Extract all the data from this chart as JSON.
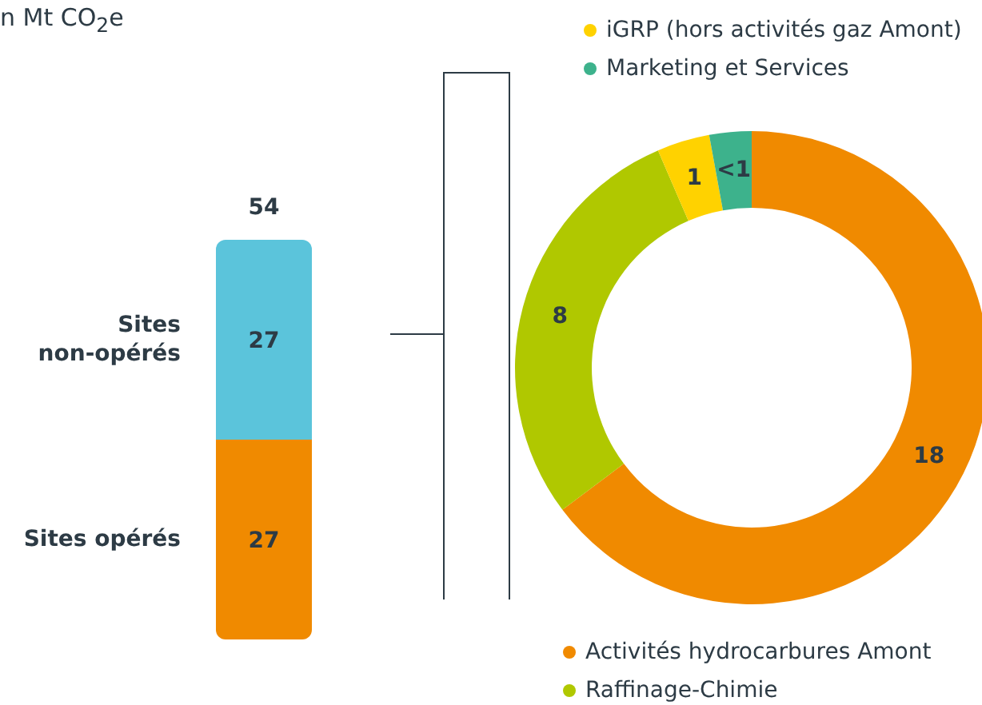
{
  "chart_data": [
    {
      "type": "bar",
      "stacked": true,
      "title": "n Mt CO$_{2}$e",
      "categories": [
        null
      ],
      "data_labels": true,
      "totals": [
        "54"
      ],
      "series": [
        {
          "name": "Sites opérés",
          "color": "#f08a00",
          "values": [
            27
          ]
        },
        {
          "name": "Sites non-opérés",
          "color": "#5bc4db",
          "values": [
            27
          ]
        }
      ]
    },
    {
      "type": "donut",
      "legend": "top right",
      "categories": [
        "Activités hydrocarbures Amont",
        "Raffinage-Chimie",
        "iGRP (hors activités gaz Amont)",
        "Marketing et Services"
      ],
      "values": [
        18,
        8,
        1,
        0.8
      ],
      "value_labels": [
        "18",
        "8",
        "1",
        "<1"
      ],
      "colors": [
        "#f08a00",
        "#b0c800",
        "#ffd200",
        "#3db28c"
      ]
    }
  ]
}
